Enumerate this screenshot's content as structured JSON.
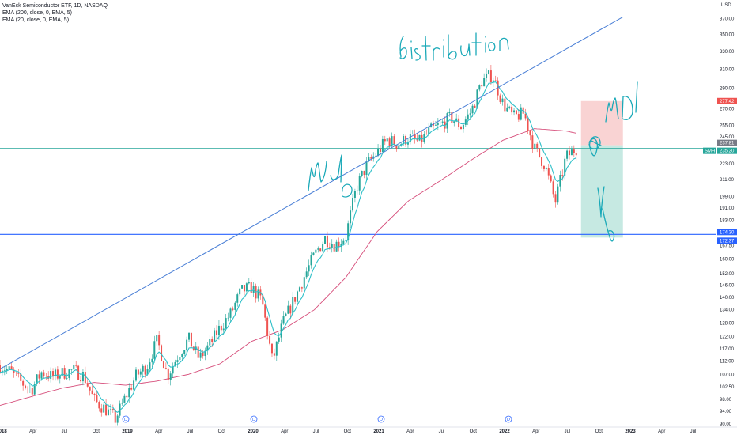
{
  "legend": {
    "title": "VanEck Semiconductor ETF, 1D, NASDAQ",
    "ema200": "EMA (200, close, 0, EMA, 5)",
    "ema20": "EMA (20, close, 0, EMA, 5)"
  },
  "colors": {
    "up": "#26a69a",
    "down": "#ef5350",
    "ema200": "#d64d7a",
    "ema20": "#2fc0c9",
    "trendline": "#4a7fd6",
    "support": "#2962ff",
    "price_line": "#26a69a",
    "target_fill": "#c6e9e2",
    "stop_fill": "#f9d3d3",
    "annotation": "#1aa9b8"
  },
  "annotations": {
    "distribution": "distribution",
    "left": "mU",
    "right": "mD"
  },
  "chart_data": {
    "type": "candlestick",
    "title": "VanEck Semiconductor ETF, 1D, NASDAQ",
    "currency": "USD",
    "y_scale": "log",
    "ylim": [
      90.0,
      386.0
    ],
    "y_ticks": [
      "370.00",
      "350.00",
      "330.00",
      "310.00",
      "290.00",
      "270.00",
      "255.00",
      "245.00",
      "223.00",
      "211.00",
      "199.00",
      "191.00",
      "183.00",
      "167.50",
      "160.00",
      "152.00",
      "146.00",
      "140.00",
      "134.00",
      "128.00",
      "122.00",
      "117.00",
      "112.00",
      "107.00",
      "102.50",
      "98.00",
      "94.00",
      "90.00"
    ],
    "x_ticks": [
      "2018",
      "Apr",
      "Jul",
      "Oct",
      "2019",
      "Apr",
      "Jul",
      "Oct",
      "2020",
      "Apr",
      "Jul",
      "Oct",
      "2021",
      "Apr",
      "Jul",
      "Oct",
      "2022",
      "Apr",
      "Jul",
      "Oct",
      "2023",
      "Apr",
      "Jul"
    ],
    "dividend_markers": [
      "D",
      "D",
      "D",
      "D"
    ],
    "price_tags": [
      {
        "value": 277.42,
        "label": "277.42",
        "kind": "stop"
      },
      {
        "value": 237.81,
        "label": "237.81",
        "kind": "entry"
      },
      {
        "value": 235.2,
        "label": "235.20",
        "symbol": "SMH",
        "kind": "last"
      },
      {
        "value": 174.3,
        "label": "174.30",
        "kind": "support"
      },
      {
        "value": 172.37,
        "label": "172.37",
        "kind": "target"
      }
    ],
    "trendline": {
      "start": [
        "2018-01",
        109.0
      ],
      "end": [
        "2022-12",
        372.0
      ]
    },
    "support_level": 174.3,
    "position": {
      "type": "short",
      "entry": 237.81,
      "stop": 277.42,
      "target": 172.37,
      "start": "2022-08",
      "end": "2022-12"
    },
    "monthly_close": [
      {
        "m": "2018-01",
        "c": 110.5
      },
      {
        "m": "2018-02",
        "c": 108.0
      },
      {
        "m": "2018-03",
        "c": 104.0
      },
      {
        "m": "2018-04",
        "c": 101.5
      },
      {
        "m": "2018-05",
        "c": 108.0
      },
      {
        "m": "2018-06",
        "c": 106.0
      },
      {
        "m": "2018-07",
        "c": 107.5
      },
      {
        "m": "2018-08",
        "c": 108.5
      },
      {
        "m": "2018-09",
        "c": 106.5
      },
      {
        "m": "2018-10",
        "c": 97.5
      },
      {
        "m": "2018-11",
        "c": 95.0
      },
      {
        "m": "2018-12",
        "c": 91.5
      },
      {
        "m": "2019-01",
        "c": 99.0
      },
      {
        "m": "2019-02",
        "c": 106.5
      },
      {
        "m": "2019-03",
        "c": 110.0
      },
      {
        "m": "2019-04",
        "c": 120.5
      },
      {
        "m": "2019-05",
        "c": 106.5
      },
      {
        "m": "2019-06",
        "c": 114.5
      },
      {
        "m": "2019-07",
        "c": 121.0
      },
      {
        "m": "2019-08",
        "c": 113.0
      },
      {
        "m": "2019-09",
        "c": 118.5
      },
      {
        "m": "2019-10",
        "c": 126.0
      },
      {
        "m": "2019-11",
        "c": 132.0
      },
      {
        "m": "2019-12",
        "c": 143.0
      },
      {
        "m": "2020-01",
        "c": 145.0
      },
      {
        "m": "2020-02",
        "c": 138.0
      },
      {
        "m": "2020-03",
        "c": 112.0
      },
      {
        "m": "2020-04",
        "c": 128.0
      },
      {
        "m": "2020-05",
        "c": 138.0
      },
      {
        "m": "2020-06",
        "c": 150.0
      },
      {
        "m": "2020-07",
        "c": 162.0
      },
      {
        "m": "2020-08",
        "c": 172.0
      },
      {
        "m": "2020-09",
        "c": 168.0
      },
      {
        "m": "2020-10",
        "c": 173.0
      },
      {
        "m": "2020-11",
        "c": 205.0
      },
      {
        "m": "2020-12",
        "c": 222.0
      },
      {
        "m": "2021-01",
        "c": 232.0
      },
      {
        "m": "2021-02",
        "c": 243.0
      },
      {
        "m": "2021-03",
        "c": 238.0
      },
      {
        "m": "2021-04",
        "c": 245.0
      },
      {
        "m": "2021-05",
        "c": 240.0
      },
      {
        "m": "2021-06",
        "c": 250.0
      },
      {
        "m": "2021-07",
        "c": 255.0
      },
      {
        "m": "2021-08",
        "c": 262.0
      },
      {
        "m": "2021-09",
        "c": 254.0
      },
      {
        "m": "2021-10",
        "c": 268.0
      },
      {
        "m": "2021-11",
        "c": 298.0
      },
      {
        "m": "2021-12",
        "c": 304.0
      },
      {
        "m": "2022-01",
        "c": 275.0
      },
      {
        "m": "2022-02",
        "c": 262.0
      },
      {
        "m": "2022-03",
        "c": 266.0
      },
      {
        "m": "2022-04",
        "c": 235.0
      },
      {
        "m": "2022-05",
        "c": 222.0
      },
      {
        "m": "2022-06",
        "c": 195.0
      },
      {
        "m": "2022-07",
        "c": 228.0
      },
      {
        "m": "2022-08",
        "c": 235.2
      }
    ],
    "ema200_monthly": [
      {
        "m": "2018-01",
        "v": 96.0
      },
      {
        "m": "2018-04",
        "v": 99.0
      },
      {
        "m": "2018-07",
        "v": 102.0
      },
      {
        "m": "2018-10",
        "v": 104.0
      },
      {
        "m": "2019-01",
        "v": 103.0
      },
      {
        "m": "2019-04",
        "v": 104.5
      },
      {
        "m": "2019-07",
        "v": 107.0
      },
      {
        "m": "2019-10",
        "v": 111.0
      },
      {
        "m": "2020-01",
        "v": 120.0
      },
      {
        "m": "2020-04",
        "v": 125.0
      },
      {
        "m": "2020-07",
        "v": 134.0
      },
      {
        "m": "2020-10",
        "v": 150.0
      },
      {
        "m": "2021-01",
        "v": 176.0
      },
      {
        "m": "2021-04",
        "v": 196.0
      },
      {
        "m": "2021-07",
        "v": 210.0
      },
      {
        "m": "2021-10",
        "v": 226.0
      },
      {
        "m": "2022-01",
        "v": 242.0
      },
      {
        "m": "2022-04",
        "v": 252.0
      },
      {
        "m": "2022-07",
        "v": 250.0
      },
      {
        "m": "2022-08",
        "v": 248.0
      }
    ]
  }
}
